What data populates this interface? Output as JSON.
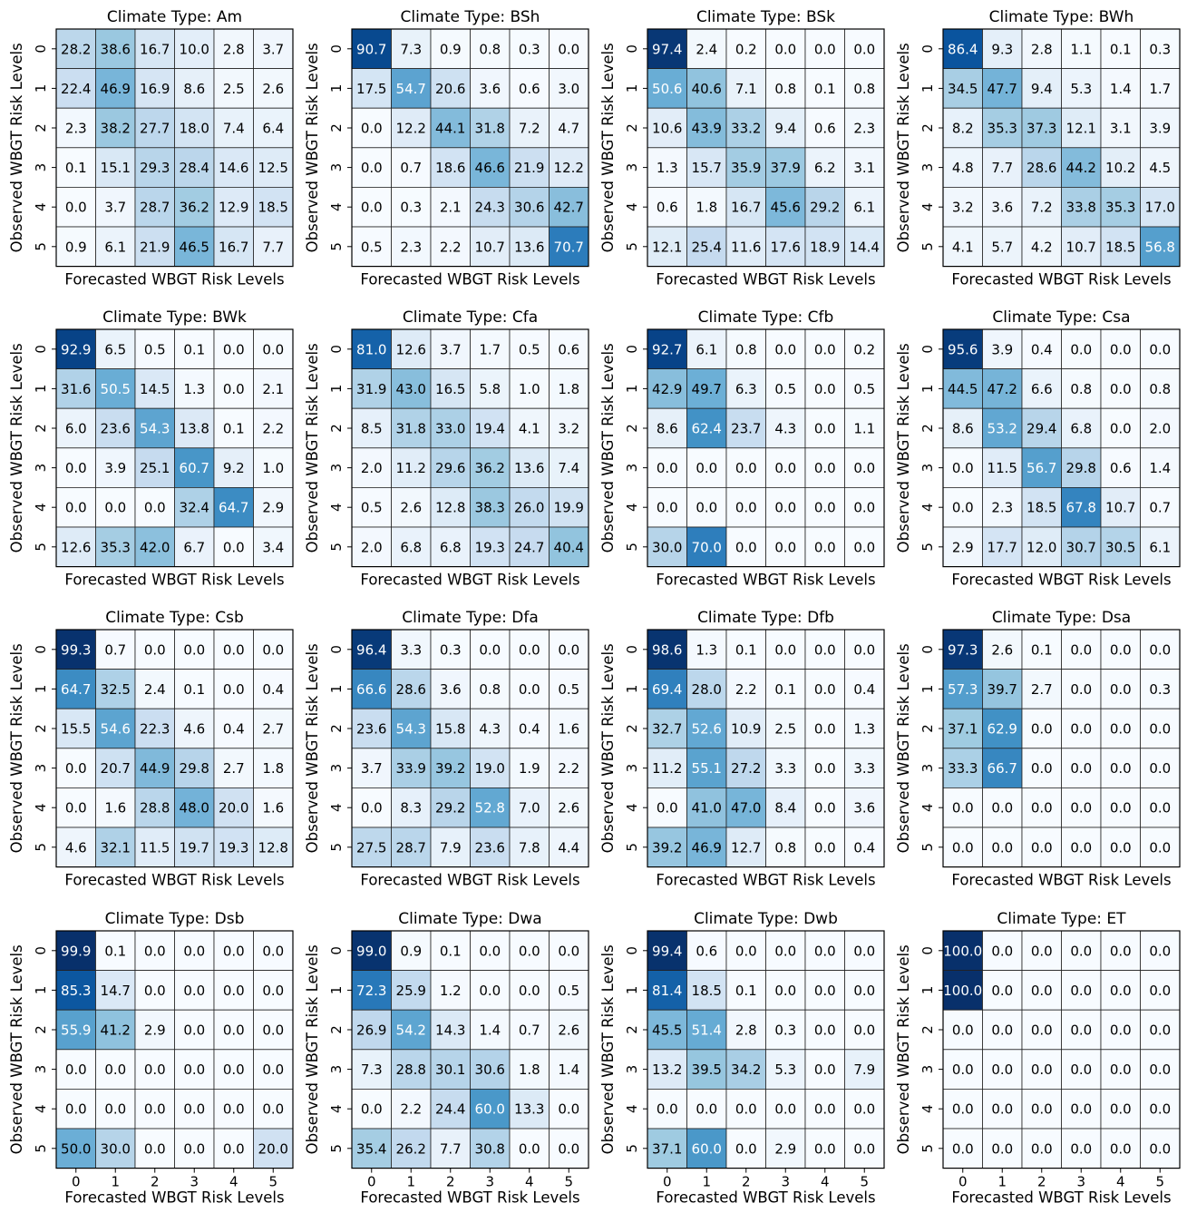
{
  "chart_data": {
    "type": "heatmap",
    "title_prefix": "Climate Type: ",
    "xlabel": "Forecasted WBGT Risk Levels",
    "ylabel": "Observed WBGT Risk Levels",
    "x_ticks": [
      "0",
      "1",
      "2",
      "3",
      "4",
      "5"
    ],
    "y_ticks": [
      "0",
      "1",
      "2",
      "3",
      "4",
      "5"
    ],
    "colormap": "Blues",
    "colormap_low": "#f7fbff",
    "colormap_high": "#08306b",
    "value_range": [
      0,
      100
    ],
    "panels": [
      {
        "name": "Am",
        "matrix": [
          [
            28.2,
            38.6,
            16.7,
            10.0,
            2.8,
            3.7
          ],
          [
            22.4,
            46.9,
            16.9,
            8.6,
            2.5,
            2.6
          ],
          [
            2.3,
            38.2,
            27.7,
            18.0,
            7.4,
            6.4
          ],
          [
            0.1,
            15.1,
            29.3,
            28.4,
            14.6,
            12.5
          ],
          [
            0.0,
            3.7,
            28.7,
            36.2,
            12.9,
            18.5
          ],
          [
            0.9,
            6.1,
            21.9,
            46.5,
            16.7,
            7.7
          ]
        ]
      },
      {
        "name": "BSh",
        "matrix": [
          [
            90.7,
            7.3,
            0.9,
            0.8,
            0.3,
            0.0
          ],
          [
            17.5,
            54.7,
            20.6,
            3.6,
            0.6,
            3.0
          ],
          [
            0.0,
            12.2,
            44.1,
            31.8,
            7.2,
            4.7
          ],
          [
            0.0,
            0.7,
            18.6,
            46.6,
            21.9,
            12.2
          ],
          [
            0.0,
            0.3,
            2.1,
            24.3,
            30.6,
            42.7
          ],
          [
            0.5,
            2.3,
            2.2,
            10.7,
            13.6,
            70.7
          ]
        ]
      },
      {
        "name": "BSk",
        "matrix": [
          [
            97.4,
            2.4,
            0.2,
            0.0,
            0.0,
            0.0
          ],
          [
            50.6,
            40.6,
            7.1,
            0.8,
            0.1,
            0.8
          ],
          [
            10.6,
            43.9,
            33.2,
            9.4,
            0.6,
            2.3
          ],
          [
            1.3,
            15.7,
            35.9,
            37.9,
            6.2,
            3.1
          ],
          [
            0.6,
            1.8,
            16.7,
            45.6,
            29.2,
            6.1
          ],
          [
            12.1,
            25.4,
            11.6,
            17.6,
            18.9,
            14.4
          ]
        ]
      },
      {
        "name": "BWh",
        "matrix": [
          [
            86.4,
            9.3,
            2.8,
            1.1,
            0.1,
            0.3
          ],
          [
            34.5,
            47.7,
            9.4,
            5.3,
            1.4,
            1.7
          ],
          [
            8.2,
            35.3,
            37.3,
            12.1,
            3.1,
            3.9
          ],
          [
            4.8,
            7.7,
            28.6,
            44.2,
            10.2,
            4.5
          ],
          [
            3.2,
            3.6,
            7.2,
            33.8,
            35.3,
            17.0
          ],
          [
            4.1,
            5.7,
            4.2,
            10.7,
            18.5,
            56.8
          ]
        ]
      },
      {
        "name": "BWk",
        "matrix": [
          [
            92.9,
            6.5,
            0.5,
            0.1,
            0.0,
            0.0
          ],
          [
            31.6,
            50.5,
            14.5,
            1.3,
            0.0,
            2.1
          ],
          [
            6.0,
            23.6,
            54.3,
            13.8,
            0.1,
            2.2
          ],
          [
            0.0,
            3.9,
            25.1,
            60.7,
            9.2,
            1.0
          ],
          [
            0.0,
            0.0,
            0.0,
            32.4,
            64.7,
            2.9
          ],
          [
            12.6,
            35.3,
            42.0,
            6.7,
            0.0,
            3.4
          ]
        ]
      },
      {
        "name": "Cfa",
        "matrix": [
          [
            81.0,
            12.6,
            3.7,
            1.7,
            0.5,
            0.6
          ],
          [
            31.9,
            43.0,
            16.5,
            5.8,
            1.0,
            1.8
          ],
          [
            8.5,
            31.8,
            33.0,
            19.4,
            4.1,
            3.2
          ],
          [
            2.0,
            11.2,
            29.6,
            36.2,
            13.6,
            7.4
          ],
          [
            0.5,
            2.6,
            12.8,
            38.3,
            26.0,
            19.9
          ],
          [
            2.0,
            6.8,
            6.8,
            19.3,
            24.7,
            40.4
          ]
        ]
      },
      {
        "name": "Cfb",
        "matrix": [
          [
            92.7,
            6.1,
            0.8,
            0.0,
            0.0,
            0.2
          ],
          [
            42.9,
            49.7,
            6.3,
            0.5,
            0.0,
            0.5
          ],
          [
            8.6,
            62.4,
            23.7,
            4.3,
            0.0,
            1.1
          ],
          [
            0.0,
            0.0,
            0.0,
            0.0,
            0.0,
            0.0
          ],
          [
            0.0,
            0.0,
            0.0,
            0.0,
            0.0,
            0.0
          ],
          [
            30.0,
            70.0,
            0.0,
            0.0,
            0.0,
            0.0
          ]
        ]
      },
      {
        "name": "Csa",
        "matrix": [
          [
            95.6,
            3.9,
            0.4,
            0.0,
            0.0,
            0.0
          ],
          [
            44.5,
            47.2,
            6.6,
            0.8,
            0.0,
            0.8
          ],
          [
            8.6,
            53.2,
            29.4,
            6.8,
            0.0,
            2.0
          ],
          [
            0.0,
            11.5,
            56.7,
            29.8,
            0.6,
            1.4
          ],
          [
            0.0,
            2.3,
            18.5,
            67.8,
            10.7,
            0.7
          ],
          [
            2.9,
            17.7,
            12.0,
            30.7,
            30.5,
            6.1
          ]
        ]
      },
      {
        "name": "Csb",
        "matrix": [
          [
            99.3,
            0.7,
            0.0,
            0.0,
            0.0,
            0.0
          ],
          [
            64.7,
            32.5,
            2.4,
            0.1,
            0.0,
            0.4
          ],
          [
            15.5,
            54.6,
            22.3,
            4.6,
            0.4,
            2.7
          ],
          [
            0.0,
            20.7,
            44.9,
            29.8,
            2.7,
            1.8
          ],
          [
            0.0,
            1.6,
            28.8,
            48.0,
            20.0,
            1.6
          ],
          [
            4.6,
            32.1,
            11.5,
            19.7,
            19.3,
            12.8
          ]
        ]
      },
      {
        "name": "Dfa",
        "matrix": [
          [
            96.4,
            3.3,
            0.3,
            0.0,
            0.0,
            0.0
          ],
          [
            66.6,
            28.6,
            3.6,
            0.8,
            0.0,
            0.5
          ],
          [
            23.6,
            54.3,
            15.8,
            4.3,
            0.4,
            1.6
          ],
          [
            3.7,
            33.9,
            39.2,
            19.0,
            1.9,
            2.2
          ],
          [
            0.0,
            8.3,
            29.2,
            52.8,
            7.0,
            2.6
          ],
          [
            27.5,
            28.7,
            7.9,
            23.6,
            7.8,
            4.4
          ]
        ]
      },
      {
        "name": "Dfb",
        "matrix": [
          [
            98.6,
            1.3,
            0.1,
            0.0,
            0.0,
            0.0
          ],
          [
            69.4,
            28.0,
            2.2,
            0.1,
            0.0,
            0.4
          ],
          [
            32.7,
            52.6,
            10.9,
            2.5,
            0.0,
            1.3
          ],
          [
            11.2,
            55.1,
            27.2,
            3.3,
            0.0,
            3.3
          ],
          [
            0.0,
            41.0,
            47.0,
            8.4,
            0.0,
            3.6
          ],
          [
            39.2,
            46.9,
            12.7,
            0.8,
            0.0,
            0.4
          ]
        ]
      },
      {
        "name": "Dsa",
        "matrix": [
          [
            97.3,
            2.6,
            0.1,
            0.0,
            0.0,
            0.0
          ],
          [
            57.3,
            39.7,
            2.7,
            0.0,
            0.0,
            0.3
          ],
          [
            37.1,
            62.9,
            0.0,
            0.0,
            0.0,
            0.0
          ],
          [
            33.3,
            66.7,
            0.0,
            0.0,
            0.0,
            0.0
          ],
          [
            0.0,
            0.0,
            0.0,
            0.0,
            0.0,
            0.0
          ],
          [
            0.0,
            0.0,
            0.0,
            0.0,
            0.0,
            0.0
          ]
        ]
      },
      {
        "name": "Dsb",
        "matrix": [
          [
            99.9,
            0.1,
            0.0,
            0.0,
            0.0,
            0.0
          ],
          [
            85.3,
            14.7,
            0.0,
            0.0,
            0.0,
            0.0
          ],
          [
            55.9,
            41.2,
            2.9,
            0.0,
            0.0,
            0.0
          ],
          [
            0.0,
            0.0,
            0.0,
            0.0,
            0.0,
            0.0
          ],
          [
            0.0,
            0.0,
            0.0,
            0.0,
            0.0,
            0.0
          ],
          [
            50.0,
            30.0,
            0.0,
            0.0,
            0.0,
            20.0
          ]
        ]
      },
      {
        "name": "Dwa",
        "matrix": [
          [
            99.0,
            0.9,
            0.1,
            0.0,
            0.0,
            0.0
          ],
          [
            72.3,
            25.9,
            1.2,
            0.0,
            0.0,
            0.5
          ],
          [
            26.9,
            54.2,
            14.3,
            1.4,
            0.7,
            2.6
          ],
          [
            7.3,
            28.8,
            30.1,
            30.6,
            1.8,
            1.4
          ],
          [
            0.0,
            2.2,
            24.4,
            60.0,
            13.3,
            0.0
          ],
          [
            35.4,
            26.2,
            7.7,
            30.8,
            0.0,
            0.0
          ]
        ]
      },
      {
        "name": "Dwb",
        "matrix": [
          [
            99.4,
            0.6,
            0.0,
            0.0,
            0.0,
            0.0
          ],
          [
            81.4,
            18.5,
            0.1,
            0.0,
            0.0,
            0.0
          ],
          [
            45.5,
            51.4,
            2.8,
            0.3,
            0.0,
            0.0
          ],
          [
            13.2,
            39.5,
            34.2,
            5.3,
            0.0,
            7.9
          ],
          [
            0.0,
            0.0,
            0.0,
            0.0,
            0.0,
            0.0
          ],
          [
            37.1,
            60.0,
            0.0,
            2.9,
            0.0,
            0.0
          ]
        ]
      },
      {
        "name": "ET",
        "matrix": [
          [
            100.0,
            0.0,
            0.0,
            0.0,
            0.0,
            0.0
          ],
          [
            100.0,
            0.0,
            0.0,
            0.0,
            0.0,
            0.0
          ],
          [
            0.0,
            0.0,
            0.0,
            0.0,
            0.0,
            0.0
          ],
          [
            0.0,
            0.0,
            0.0,
            0.0,
            0.0,
            0.0
          ],
          [
            0.0,
            0.0,
            0.0,
            0.0,
            0.0,
            0.0
          ],
          [
            0.0,
            0.0,
            0.0,
            0.0,
            0.0,
            0.0
          ]
        ]
      }
    ]
  }
}
